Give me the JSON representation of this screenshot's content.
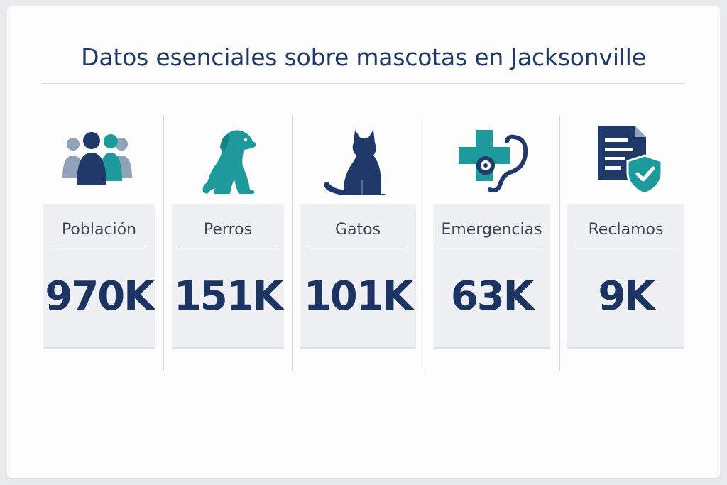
{
  "header": {
    "title": "Datos esenciales sobre mascotas en Jacksonville"
  },
  "colors": {
    "navy": "#1f3a68",
    "teal": "#1f9a9c",
    "gray_blue": "#8fa2b8"
  },
  "stats": [
    {
      "label": "Población",
      "value": "970K",
      "icon": "people-group-icon"
    },
    {
      "label": "Perros",
      "value": "151K",
      "icon": "dog-icon"
    },
    {
      "label": "Gatos",
      "value": "101K",
      "icon": "cat-icon"
    },
    {
      "label": "Emergencias",
      "value": "63K",
      "icon": "medical-cross-stethoscope-icon"
    },
    {
      "label": "Reclamos",
      "value": "9K",
      "icon": "document-shield-icon"
    }
  ]
}
